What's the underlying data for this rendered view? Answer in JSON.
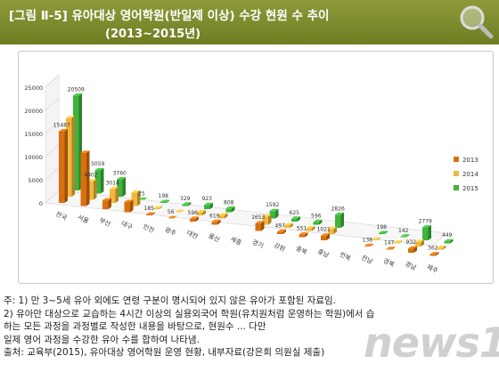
{
  "header": {
    "title_line1": "[그림 Ⅱ-5] 유아대상 영어학원(반일제 이상) 수강 현원 수 추이",
    "title_line2": "(2013~2015년)"
  },
  "icons": {
    "magnifier": "magnifier-icon"
  },
  "chart_data": {
    "type": "bar",
    "subtype": "3d-clustered-column",
    "yticks": [
      "25000",
      "20000",
      "15000",
      "10000",
      "5000",
      "0"
    ],
    "ylim": [
      0,
      25000
    ],
    "categories": [
      "전국",
      "서울",
      "부산",
      "대구",
      "인천",
      "광주",
      "대전",
      "울산",
      "세종",
      "경기",
      "강원",
      "충북",
      "충남",
      "전북",
      "전남",
      "경북",
      "경남",
      "제주"
    ],
    "series": [
      {
        "name": "2013",
        "color": "#d9700f",
        "values": [
          15487,
          11500,
          1900,
          2200,
          185,
          56,
          596,
          619,
          0,
          1653,
          497,
          551,
          1021,
          0,
          138,
          147,
          932,
          362
        ]
      },
      {
        "name": "2014",
        "color": "#f1b73c",
        "values": [
          17000,
          4002,
          3014,
          2900,
          200,
          70,
          700,
          700,
          0,
          1750,
          560,
          580,
          1100,
          0,
          150,
          160,
          1000,
          400
        ]
      },
      {
        "name": "2015",
        "color": "#3fb33c",
        "values": [
          20509,
          5059,
          3760,
          25,
          198,
          329,
          923,
          808,
          0,
          1592,
          625,
          596,
          2826,
          0,
          198,
          142,
          2779,
          449
        ]
      }
    ],
    "data_labels": [
      {
        "series": "2013",
        "category": "전국",
        "text": "15487"
      },
      {
        "series": "2015",
        "category": "전국",
        "text": "20509"
      },
      {
        "series": "2014",
        "category": "서울",
        "text": "4002"
      },
      {
        "series": "2015",
        "category": "서울",
        "text": "5059"
      },
      {
        "series": "2014",
        "category": "부산",
        "text": "3014"
      },
      {
        "series": "2015",
        "category": "부산",
        "text": "3760"
      },
      {
        "series": "2015",
        "category": "대구",
        "text": "25"
      },
      {
        "series": "2013",
        "category": "인천",
        "text": "185"
      },
      {
        "series": "2015",
        "category": "인천",
        "text": "198"
      },
      {
        "series": "2013",
        "category": "광주",
        "text": "56"
      },
      {
        "series": "2015",
        "category": "광주",
        "text": "329"
      },
      {
        "series": "2013",
        "category": "대전",
        "text": "596"
      },
      {
        "series": "2015",
        "category": "대전",
        "text": "923"
      },
      {
        "series": "2013",
        "category": "울산",
        "text": "619"
      },
      {
        "series": "2015",
        "category": "울산",
        "text": "808"
      },
      {
        "series": "2013",
        "category": "경기",
        "text": "1653"
      },
      {
        "series": "2015",
        "category": "경기",
        "text": "1592"
      },
      {
        "series": "2013",
        "category": "강원",
        "text": "497"
      },
      {
        "series": "2015",
        "category": "강원",
        "text": "625"
      },
      {
        "series": "2013",
        "category": "충북",
        "text": "551"
      },
      {
        "series": "2015",
        "category": "충북",
        "text": "596"
      },
      {
        "series": "2013",
        "category": "충남",
        "text": "1021"
      },
      {
        "series": "2015",
        "category": "충남",
        "text": "2826"
      },
      {
        "series": "2013",
        "category": "전남",
        "text": "138"
      },
      {
        "series": "2015",
        "category": "전남",
        "text": "198"
      },
      {
        "series": "2013",
        "category": "경북",
        "text": "147"
      },
      {
        "series": "2015",
        "category": "경북",
        "text": "142"
      },
      {
        "series": "2013",
        "category": "경남",
        "text": "932"
      },
      {
        "series": "2015",
        "category": "경남",
        "text": "2779"
      },
      {
        "series": "2013",
        "category": "제주",
        "text": "362"
      },
      {
        "series": "2015",
        "category": "제주",
        "text": "449"
      }
    ],
    "legend": {
      "position": "right",
      "entries": [
        "2013",
        "2014",
        "2015"
      ]
    }
  },
  "notes": [
    "주: 1) 만 3~5세 유아 외에도 연령 구분이 명시되어 있지 않은 유아가 포함된 자료임.",
    "    2) 유아만 대상으로 교습하는 4시간 이상의 실용외국어 학원(유치원처럼 운영하는 학원)에서 습",
    "       하는 모든 과정을 과정별로 작성한 내용을 바탕으로, 현원수 ... 다만",
    "       일제 영어 과정을 수강한 유아 수를 합하여 나타냄.",
    "출처: 교육부(2015), 유아대상 영어학원 운영 현황, 내부자료(강은희 의원실 제출)"
  ],
  "watermark": "news1"
}
